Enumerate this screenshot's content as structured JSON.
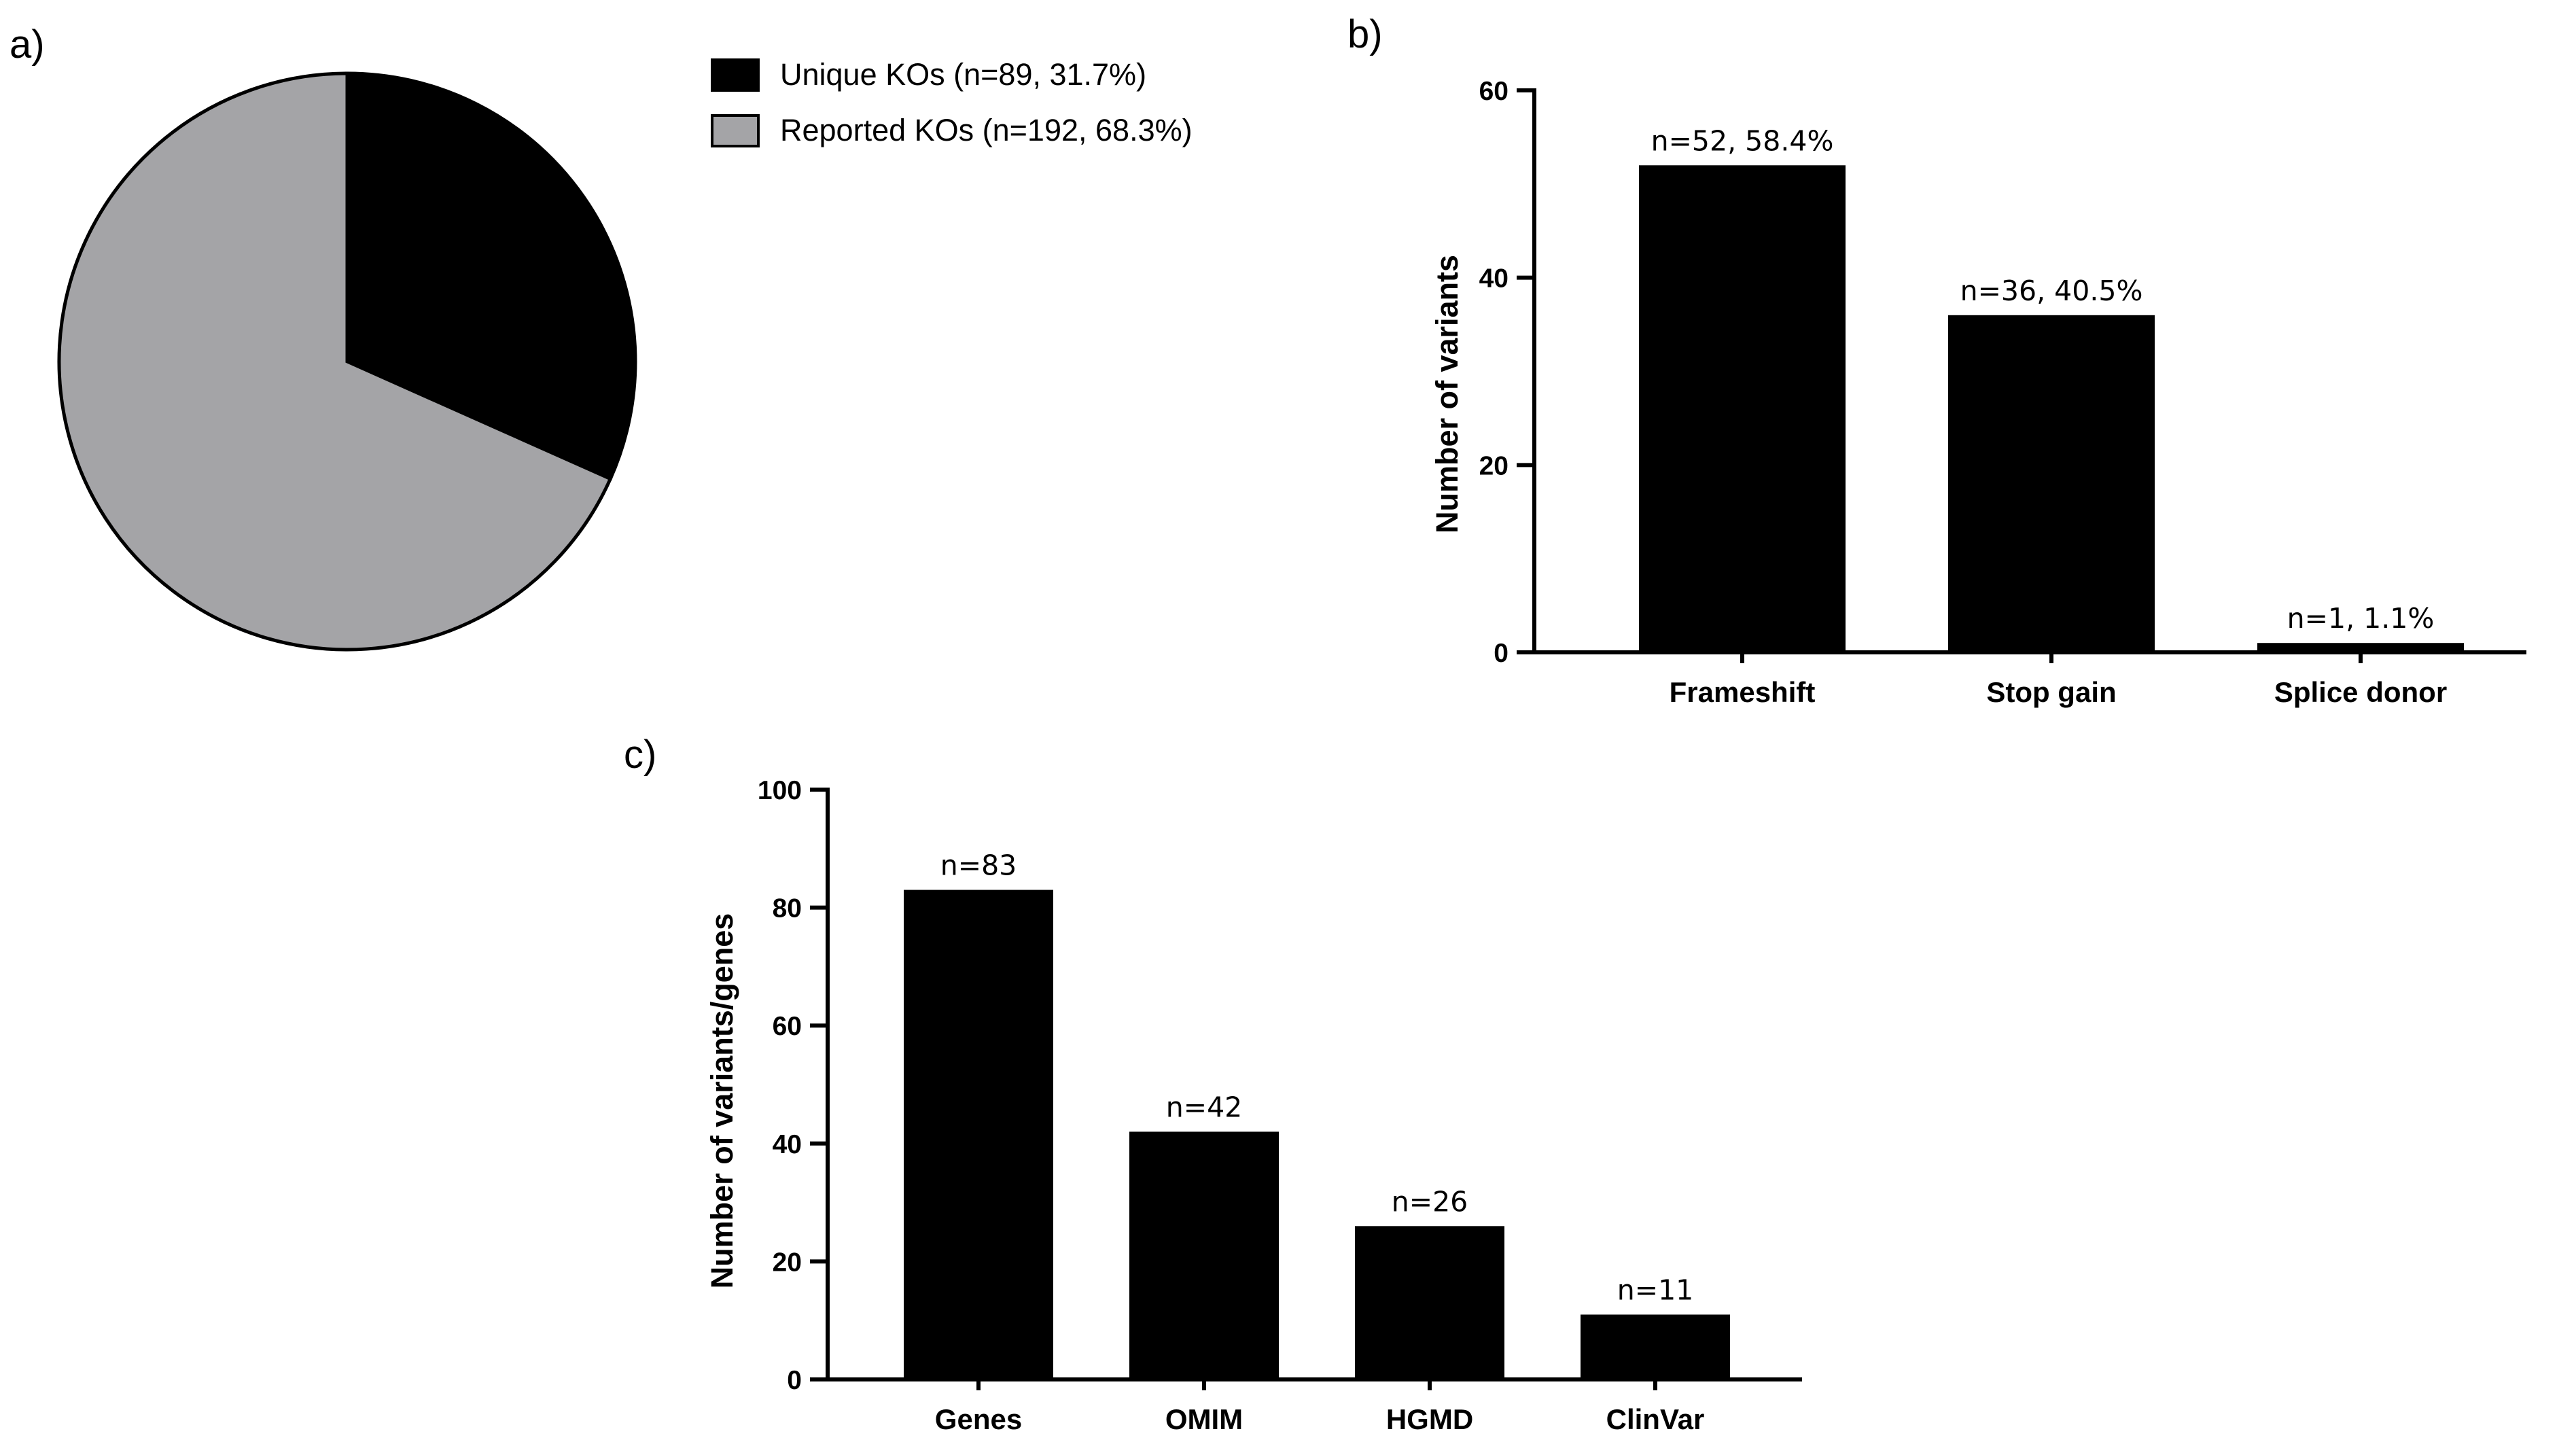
{
  "chart_data": [
    {
      "panel": "a)",
      "type": "pie",
      "title": "",
      "labels": [
        "Unique KOs (n=89, 31.7%)",
        "Reported KOs (n=192, 68.3%)"
      ],
      "values": [
        89,
        192
      ],
      "percentages": [
        31.7,
        68.3
      ],
      "colors": [
        "#000000",
        "#a4a4a7"
      ],
      "legend_position": "top-right"
    },
    {
      "panel": "b)",
      "type": "bar",
      "title": "",
      "xlabel": "",
      "ylabel": "Number of variants",
      "categories": [
        "Frameshift",
        "Stop gain",
        "Splice donor"
      ],
      "values": [
        52,
        36,
        1
      ],
      "data_labels": [
        "n=52, 58.4%",
        "n=36, 40.5%",
        "n=1, 1.1%"
      ],
      "ylim": [
        0,
        60
      ],
      "yticks": [
        0,
        20,
        40,
        60
      ],
      "color": "#000000"
    },
    {
      "panel": "c)",
      "type": "bar",
      "title": "",
      "xlabel": "",
      "ylabel": "Number of variants/genes",
      "categories": [
        "Genes",
        "OMIM",
        "HGMD",
        "ClinVar"
      ],
      "values": [
        83,
        42,
        26,
        11
      ],
      "data_labels": [
        "n=83",
        "n=42",
        "n=26",
        "n=11"
      ],
      "ylim": [
        0,
        100
      ],
      "yticks": [
        0,
        20,
        40,
        60,
        80,
        100
      ],
      "color": "#000000"
    }
  ]
}
